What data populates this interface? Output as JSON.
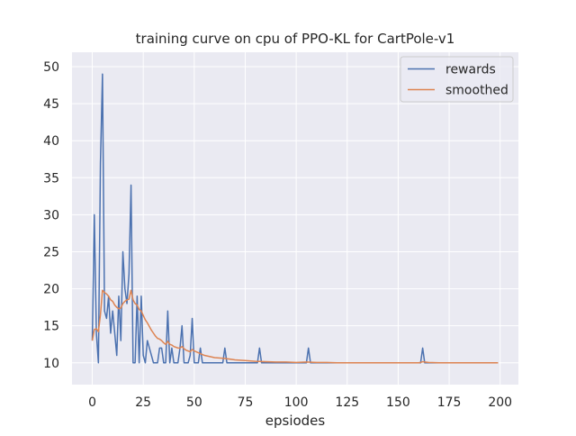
{
  "chart_data": {
    "type": "line",
    "title": "training curve on cpu of PPO-KL for CartPole-v1",
    "xlabel": "epsiodes",
    "ylabel": "",
    "xlim": [
      -9.95,
      208.95
    ],
    "ylim": [
      7.05,
      51.95
    ],
    "xticks": [
      0,
      25,
      50,
      75,
      100,
      125,
      150,
      175,
      200
    ],
    "yticks": [
      10,
      15,
      20,
      25,
      30,
      35,
      40,
      45,
      50
    ],
    "grid": true,
    "legend_position": "top-right",
    "colors": {
      "rewards": "#4c72b0",
      "smoothed": "#dd8452",
      "background": "#eaeaf2",
      "grid": "#ffffff"
    },
    "series": [
      {
        "name": "rewards",
        "x": [
          0,
          1,
          2,
          3,
          4,
          5,
          6,
          7,
          8,
          9,
          10,
          11,
          12,
          13,
          14,
          15,
          16,
          17,
          18,
          19,
          20,
          21,
          22,
          23,
          24,
          25,
          26,
          27,
          28,
          29,
          30,
          31,
          32,
          33,
          34,
          35,
          36,
          37,
          38,
          39,
          40,
          41,
          42,
          43,
          44,
          45,
          46,
          47,
          48,
          49,
          50,
          51,
          52,
          53,
          54,
          55,
          56,
          57,
          58,
          59,
          60,
          61,
          62,
          63,
          64,
          65,
          66,
          67,
          68,
          69,
          70,
          71,
          72,
          73,
          74,
          75,
          76,
          77,
          78,
          79,
          80,
          81,
          82,
          83,
          84,
          85,
          86,
          87,
          88,
          89,
          90,
          91,
          92,
          93,
          94,
          95,
          96,
          97,
          98,
          99,
          100,
          101,
          102,
          103,
          104,
          105,
          106,
          107,
          108,
          109,
          110,
          111,
          112,
          113,
          114,
          115,
          116,
          117,
          118,
          119,
          120,
          121,
          122,
          123,
          124,
          125,
          126,
          127,
          128,
          129,
          130,
          131,
          132,
          133,
          134,
          135,
          136,
          137,
          138,
          139,
          140,
          141,
          142,
          143,
          144,
          145,
          146,
          147,
          148,
          149,
          150,
          151,
          152,
          153,
          154,
          155,
          156,
          157,
          158,
          159,
          160,
          161,
          162,
          163,
          164,
          165,
          166,
          167,
          168,
          169,
          170,
          171,
          172,
          173,
          174,
          175,
          176,
          177,
          178,
          179,
          180,
          181,
          182,
          183,
          184,
          185,
          186,
          187,
          188,
          189,
          190,
          191,
          192,
          193,
          194,
          195,
          196,
          197,
          198,
          199
        ],
        "values": [
          13,
          30,
          14,
          10,
          37,
          49,
          17,
          16,
          19,
          14,
          17,
          14,
          11,
          19,
          13,
          25,
          20,
          18,
          22,
          34,
          10,
          10,
          19,
          10,
          19,
          11,
          10,
          13,
          12,
          11,
          10,
          10,
          10,
          12,
          12,
          10,
          10,
          17,
          10,
          12,
          10,
          10,
          10,
          12,
          15,
          10,
          10,
          10,
          11,
          16,
          10,
          10,
          10,
          12,
          10,
          10,
          10,
          10,
          10,
          10,
          10,
          10,
          10,
          10,
          10,
          12,
          10,
          10,
          10,
          10,
          10,
          10,
          10,
          10,
          10,
          10,
          10,
          10,
          10,
          10,
          10,
          10,
          12,
          10,
          10,
          10,
          10,
          10,
          10,
          10,
          10,
          10,
          10,
          10,
          10,
          10,
          10,
          10,
          10,
          10,
          10,
          10,
          10,
          10,
          10,
          10,
          12,
          10,
          10,
          10,
          10,
          10,
          10,
          10,
          10,
          10,
          10,
          10,
          10,
          10,
          10,
          10,
          10,
          10,
          10,
          10,
          10,
          10,
          10,
          10,
          10,
          10,
          10,
          10,
          10,
          10,
          10,
          10,
          10,
          10,
          10,
          10,
          10,
          10,
          10,
          10,
          10,
          10,
          10,
          10,
          10,
          10,
          10,
          10,
          10,
          10,
          10,
          10,
          10,
          10,
          10,
          10,
          12,
          10,
          10,
          10,
          10,
          10,
          10,
          10,
          10,
          10,
          10,
          10,
          10,
          10,
          10,
          10,
          10,
          10,
          10,
          10,
          10,
          10,
          10,
          10,
          10,
          10,
          10,
          10,
          10,
          10,
          10,
          10,
          10,
          10,
          10,
          10,
          10,
          10
        ]
      },
      {
        "name": "smoothed",
        "x": [
          0,
          1,
          2,
          3,
          4,
          5,
          6,
          7,
          8,
          9,
          10,
          11,
          12,
          13,
          14,
          15,
          16,
          17,
          18,
          19,
          20,
          21,
          22,
          23,
          24,
          25,
          26,
          27,
          28,
          29,
          30,
          31,
          32,
          33,
          34,
          35,
          36,
          37,
          38,
          39,
          40,
          41,
          42,
          43,
          44,
          45,
          46,
          47,
          48,
          49,
          50,
          55,
          60,
          65,
          70,
          75,
          80,
          85,
          90,
          95,
          100,
          105,
          110,
          115,
          120,
          125,
          130,
          140,
          150,
          160,
          161,
          162,
          163,
          165,
          170,
          180,
          190,
          199
        ],
        "values": [
          13,
          14.5,
          14.6,
          14.2,
          16.5,
          19.8,
          19.5,
          19.3,
          19.0,
          18.5,
          18.3,
          17.8,
          17.5,
          17.3,
          17.4,
          18.0,
          18.3,
          18.5,
          18.6,
          19.8,
          18.5,
          18.0,
          17.8,
          17.2,
          17.0,
          16.4,
          15.8,
          15.4,
          14.9,
          14.4,
          14.0,
          13.6,
          13.3,
          13.2,
          13.0,
          12.7,
          12.5,
          12.9,
          12.5,
          12.4,
          12.2,
          12.1,
          12.0,
          12.0,
          12.2,
          11.9,
          11.7,
          11.6,
          11.5,
          11.8,
          11.6,
          11.0,
          10.7,
          10.6,
          10.4,
          10.3,
          10.2,
          10.15,
          10.1,
          10.1,
          10.05,
          10.1,
          10.05,
          10.05,
          10.0,
          10.0,
          10.0,
          10.0,
          10.0,
          10.0,
          10.05,
          10.15,
          10.1,
          10.05,
          10.0,
          10.0,
          10.0,
          10.0
        ]
      }
    ]
  }
}
